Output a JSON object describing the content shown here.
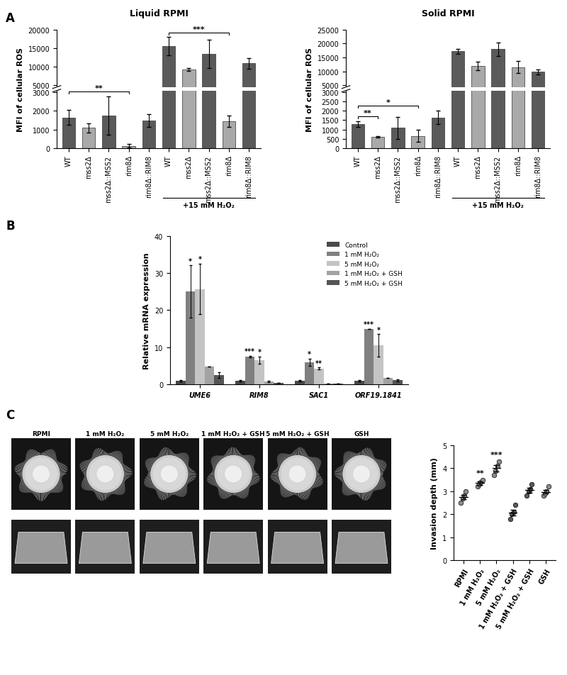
{
  "chart_data": [
    {
      "type": "bar",
      "panel": "A",
      "title": "Liquid RPMI",
      "y_label": "MFI of cellular ROS",
      "categories": [
        "WT",
        "mss2Δ",
        "mss2Δ::MSS2",
        "rim8Δ",
        "rim8Δ::RIM8",
        "WT",
        "mss2Δ",
        "mss2Δ::MSS2",
        "rim8Δ",
        "rim8Δ::RIM8"
      ],
      "values": [
        1650,
        1080,
        1750,
        120,
        1480,
        15500,
        9300,
        13500,
        1450,
        10900
      ],
      "errors": [
        400,
        250,
        1050,
        80,
        350,
        2500,
        400,
        3800,
        300,
        1500
      ],
      "colors": [
        "#5a5a5a",
        "#a9a9a9",
        "#5a5a5a",
        "#a9a9a9",
        "#5a5a5a",
        "#5a5a5a",
        "#a9a9a9",
        "#5a5a5a",
        "#a9a9a9",
        "#5a5a5a"
      ],
      "ylim": [
        0,
        20000
      ],
      "yticks": [
        0,
        1000,
        2000,
        3000,
        5000,
        10000,
        15000,
        20000
      ],
      "significance": [
        {
          "text": "**",
          "between": [
            0,
            3
          ]
        },
        {
          "text": "***",
          "between": [
            5,
            8
          ]
        }
      ],
      "group_label": {
        "text": "+15 mM H₂O₂",
        "between": [
          5,
          9
        ]
      }
    },
    {
      "type": "bar",
      "title": "Solid RPMI",
      "y_label": "MFI of cellular ROS",
      "categories": [
        "WT",
        "mss2Δ",
        "mss2Δ::MSS2",
        "rim8Δ",
        "rim8Δ::RIM8",
        "WT",
        "mss2Δ",
        "mss2Δ::MSS2",
        "rim8Δ",
        "rim8Δ::RIM8"
      ],
      "values": [
        1300,
        600,
        1080,
        650,
        1650,
        17200,
        12000,
        18000,
        11500,
        9800
      ],
      "errors": [
        150,
        40,
        600,
        330,
        350,
        800,
        1500,
        2500,
        2200,
        1000
      ],
      "colors": [
        "#5a5a5a",
        "#a9a9a9",
        "#5a5a5a",
        "#a9a9a9",
        "#5a5a5a",
        "#5a5a5a",
        "#a9a9a9",
        "#5a5a5a",
        "#a9a9a9",
        "#5a5a5a"
      ],
      "ylim": [
        0,
        25000
      ],
      "yticks": [
        0,
        500,
        1000,
        1500,
        2000,
        2500,
        3000,
        5000,
        10000,
        15000,
        20000,
        25000
      ],
      "significance": [
        {
          "text": "**",
          "between": [
            0,
            1
          ]
        },
        {
          "text": "*",
          "between": [
            0,
            3
          ]
        }
      ],
      "group_label": {
        "text": "+15 mM H₂O₂",
        "between": [
          5,
          9
        ]
      }
    },
    {
      "type": "bar",
      "panel": "B",
      "y_label": "Relative mRNA expression",
      "categories": [
        "UME6",
        "RIM8",
        "SAC1",
        "ORF19.1841"
      ],
      "series": [
        {
          "name": "Control",
          "color": "#4a4a4a",
          "values": [
            1,
            1,
            1,
            1
          ],
          "errors": [
            0.2,
            0.2,
            0.2,
            0.2
          ],
          "stars": [
            null,
            null,
            null,
            null
          ]
        },
        {
          "name": "1 mM H₂O₂",
          "color": "#808080",
          "values": [
            25,
            7.5,
            6,
            15
          ],
          "errors": [
            7,
            0.2,
            1,
            0
          ],
          "stars": [
            "*",
            "***",
            "*",
            "***"
          ]
        },
        {
          "name": "5 mM H₂O₂",
          "color": "#c4c4c4",
          "values": [
            25.7,
            6.5,
            4.3,
            10.5
          ],
          "errors": [
            6.8,
            1,
            0.3,
            3
          ],
          "stars": [
            "*",
            "*",
            "**",
            "*"
          ]
        },
        {
          "name": "1 mM H₂O₂ + GSH",
          "color": "#a3a3a3",
          "values": [
            4.9,
            0.8,
            0.3,
            1.8
          ],
          "errors": [
            0,
            0.2,
            0,
            0
          ],
          "stars": [
            null,
            null,
            null,
            null
          ]
        },
        {
          "name": "5 mM H₂O₂ + GSH",
          "color": "#555555",
          "values": [
            2.5,
            0.4,
            0.2,
            1.1
          ],
          "errors": [
            0.8,
            0,
            0,
            0.3
          ],
          "stars": [
            null,
            null,
            null,
            null
          ]
        }
      ],
      "ylim": [
        0,
        40
      ],
      "yticks": [
        0,
        10,
        20,
        30,
        40
      ],
      "legend": "upper right"
    },
    {
      "type": "image",
      "panel": "C",
      "categories": [
        "RPMI",
        "1 mM H₂O₂",
        "5 mM H₂O₂",
        "1 mM H₂O₂ + GSH",
        "5 mM H₂O₂ + GSH",
        "GSH"
      ]
    },
    {
      "type": "scatter",
      "y_label": "Invasion depth (mm)",
      "categories": [
        "RPMI",
        "1 mM H₂O₂",
        "5 mM H₂O₂",
        "1 mM H₂O₂ + GSH",
        "5 mM H₂O₂ + GSH",
        "GSH"
      ],
      "values": [
        [
          2.5,
          2.7,
          2.8,
          3.0
        ],
        [
          3.2,
          3.3,
          3.4,
          3.5
        ],
        [
          3.7,
          3.9,
          4.1,
          4.3
        ],
        [
          1.8,
          2.0,
          2.1,
          2.4
        ],
        [
          2.8,
          3.0,
          3.1,
          3.3
        ],
        [
          2.8,
          2.9,
          3.0,
          3.2
        ]
      ],
      "colors": [
        "#8c8c8c",
        "#8c8c8c",
        "#8c8c8c",
        "#5a5a5a",
        "#5a5a5a",
        "#8c8c8c"
      ],
      "stars": [
        null,
        "**",
        "***",
        null,
        null,
        null
      ],
      "ylim": [
        0,
        5
      ],
      "yticks": [
        0,
        1,
        2,
        3,
        4,
        5
      ]
    }
  ]
}
